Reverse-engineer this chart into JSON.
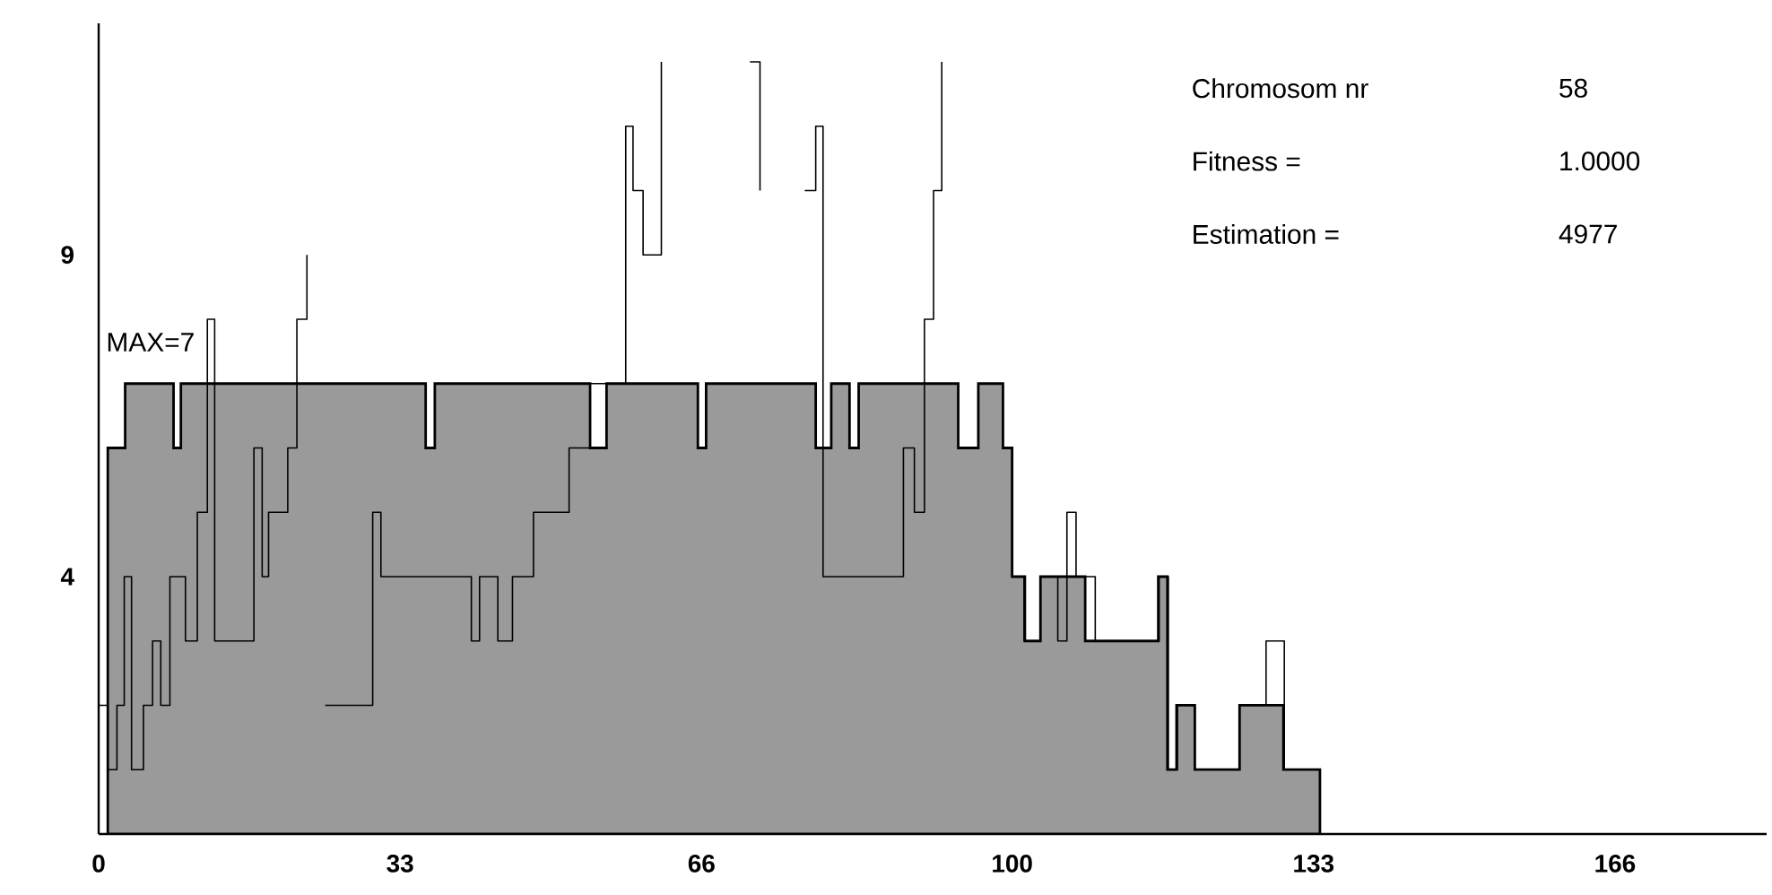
{
  "chart_data": {
    "type": "step",
    "xlim": [
      0,
      182.6
    ],
    "ylim": [
      0,
      12.6
    ],
    "xticks": [
      0,
      33,
      66,
      100,
      133,
      166
    ],
    "yticks": [
      4,
      9
    ],
    "marker": "none",
    "annotations": [
      "MAX=7",
      "Chromosom nr",
      "58",
      "Fitness =",
      "1.0000",
      "Estimation =",
      "4977"
    ],
    "series": [
      {
        "type": "area",
        "color": "#9a9a9a",
        "x": [
          1.0,
          2.9,
          8.2,
          9.0,
          35.8,
          36.8,
          53.8,
          55.6,
          65.6,
          66.5,
          78.5,
          80.2,
          82.2,
          83.2,
          94.1,
          96.3,
          99.0,
          100.0,
          101.4,
          103.1,
          108.0,
          116.0,
          117.0,
          118.0,
          120.0,
          124.9,
          129.7,
          133.7
        ],
        "values": [
          6,
          7,
          6,
          7,
          6,
          7,
          6,
          7,
          6,
          7,
          6,
          7,
          6,
          7,
          6,
          7,
          6,
          4,
          3,
          4,
          3,
          4,
          1,
          2,
          1,
          2,
          1,
          0
        ]
      },
      {
        "color": "#000000",
        "x": [
          0,
          1.0,
          2.0,
          2.8,
          3.6,
          4.9,
          5.9,
          6.8,
          7.8,
          9.5,
          10.8,
          11.9,
          12.7,
          17.0,
          17.9,
          18.6,
          20.7,
          21.7,
          22.8,
          23.7,
          24.8,
          30.0,
          30.9,
          40.8,
          41.7,
          43.7,
          45.3,
          47.6,
          51.5,
          53.8,
          57.7,
          58.5,
          59.6,
          61.6,
          63.6,
          71.3,
          72.4,
          73.4,
          77.3,
          78.5,
          79.3,
          88.1,
          89.3,
          90.4,
          91.4,
          92.3,
          93.0,
          98.9,
          100.0,
          101.3,
          103.1,
          105.0,
          106.0,
          107.0,
          109.1,
          116.1,
          117.1,
          118.1,
          120.0,
          124.9,
          127.8,
          129.8,
          133.7
        ],
        "values": [
          2,
          1,
          2,
          4,
          1,
          2,
          3,
          2,
          4,
          3,
          5,
          8,
          3,
          6,
          4,
          5,
          6,
          8,
          9,
          null,
          2,
          5,
          4,
          3,
          4,
          3,
          4,
          5,
          6,
          7,
          11,
          10,
          9,
          12,
          null,
          12,
          10,
          null,
          10,
          11,
          4,
          6,
          5,
          8,
          10,
          12,
          null,
          6,
          4,
          3,
          4,
          3,
          5,
          4,
          3,
          4,
          1,
          2,
          1,
          2,
          3,
          1,
          0
        ]
      }
    ]
  }
}
